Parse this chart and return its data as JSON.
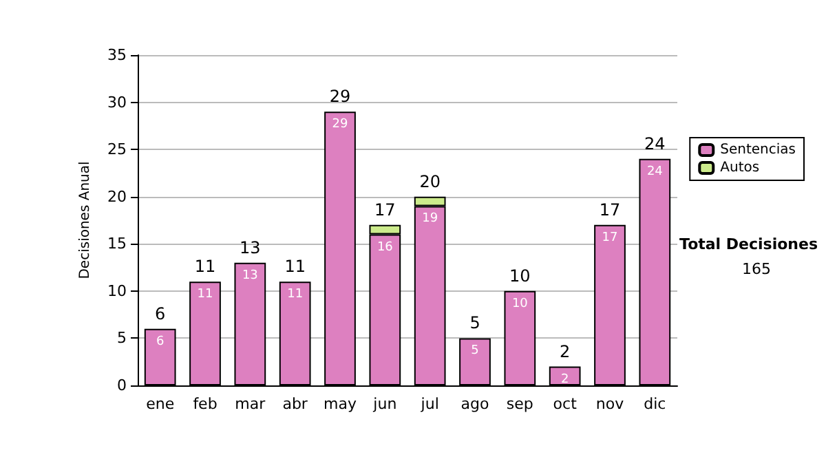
{
  "chart_data": {
    "type": "bar",
    "stacked": true,
    "ylabel": "Decisiones Anual",
    "categories": [
      "ene",
      "feb",
      "mar",
      "abr",
      "may",
      "jun",
      "jul",
      "ago",
      "sep",
      "oct",
      "nov",
      "dic"
    ],
    "series": [
      {
        "name": "Sentencias",
        "color": "#dd80c0",
        "values": [
          6,
          11,
          13,
          11,
          29,
          16,
          19,
          5,
          10,
          2,
          17,
          24
        ],
        "value_labels": [
          "6",
          "11",
          "13",
          "11",
          "29",
          "16",
          "19",
          "5",
          "10",
          "2",
          "17",
          "24"
        ]
      },
      {
        "name": "Autos",
        "color": "#cceb8c",
        "values": [
          null,
          null,
          null,
          null,
          null,
          1,
          1,
          null,
          null,
          null,
          null,
          null
        ]
      }
    ],
    "totals": [
      "6",
      "11",
      "13",
      "11",
      "29",
      "17",
      "20",
      "5",
      "10",
      "2",
      "17",
      "24"
    ],
    "ylim": [
      0,
      35
    ],
    "yticks": [
      0,
      5,
      10,
      15,
      20,
      25,
      30,
      35
    ],
    "grid": "y",
    "legend": "right",
    "annotations": [
      "Total Decisiones",
      "165"
    ]
  }
}
